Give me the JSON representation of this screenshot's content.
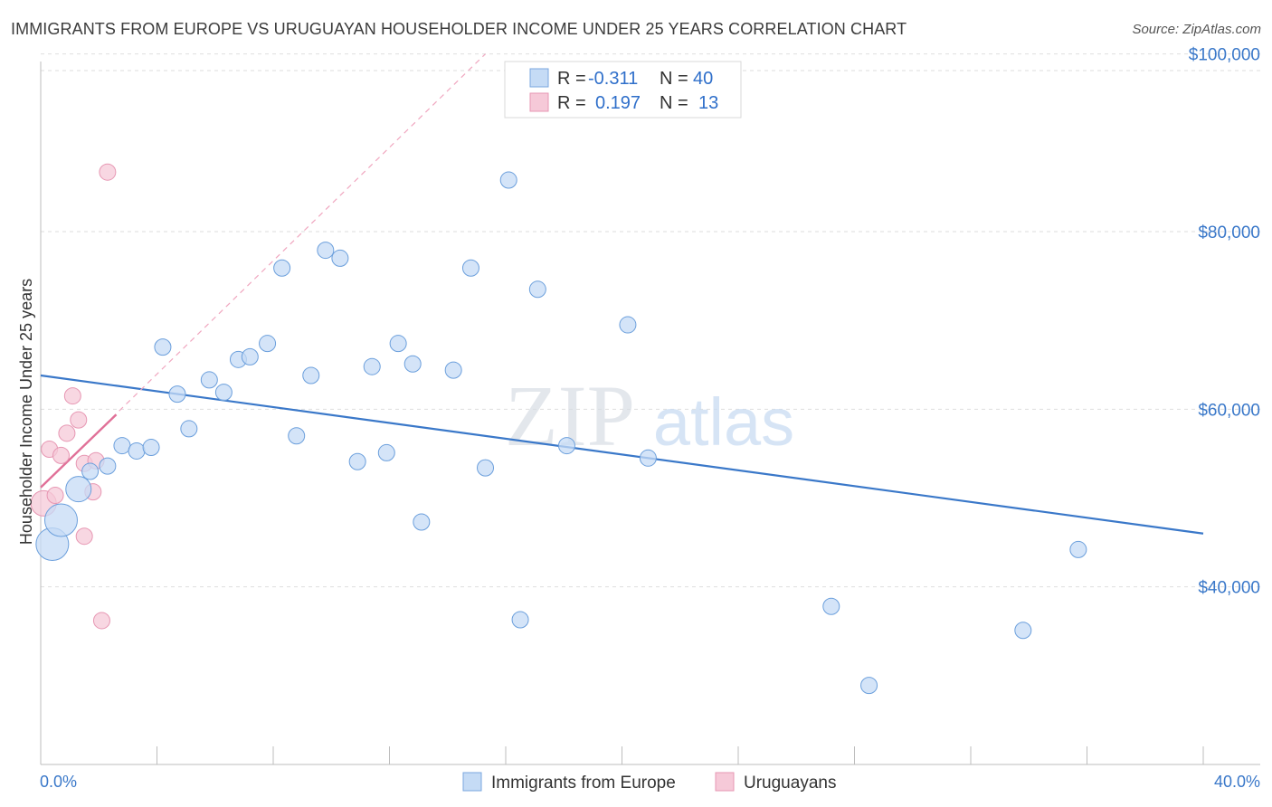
{
  "title": "IMMIGRANTS FROM EUROPE VS URUGUAYAN HOUSEHOLDER INCOME UNDER 25 YEARS CORRELATION CHART",
  "source": "Source: ZipAtlas.com",
  "watermark": {
    "zip": "ZIP",
    "atlas": "atlas"
  },
  "colors": {
    "blue": "#3a78c9",
    "blue_fill": "#c5dbf5",
    "pink": "#e07098",
    "pink_fill": "#f6c9d8"
  },
  "legend": {
    "series1": {
      "r_label": "R =",
      "r_value": "-0.311",
      "n_label": "N =",
      "n_value": "40"
    },
    "series2": {
      "r_label": "R =",
      "r_value": "0.197",
      "n_label": "N =",
      "n_value": "13"
    }
  },
  "chart_data": {
    "type": "scatter",
    "title": "IMMIGRANTS FROM EUROPE VS URUGUAYAN HOUSEHOLDER INCOME UNDER 25 YEARS CORRELATION CHART",
    "xlabel": "",
    "ylabel": "Householder Income Under 25 years",
    "xlim": [
      0,
      40
    ],
    "ylim": [
      20000,
      102000
    ],
    "x_tick_labels": [
      "0.0%",
      "40.0%"
    ],
    "y_ticks": [
      40000,
      60000,
      80000,
      100000
    ],
    "y_tick_labels": [
      "$40,000",
      "$60,000",
      "$80,000",
      "$100,000"
    ],
    "grid": true,
    "legend_position": "top-center",
    "series": [
      {
        "name": "Immigrants from Europe",
        "trend": {
          "x": [
            0,
            40
          ],
          "y": [
            63800,
            46000
          ]
        },
        "points": [
          {
            "x": 0.4,
            "y": 44800,
            "s": 3
          },
          {
            "x": 0.7,
            "y": 47500,
            "s": 3
          },
          {
            "x": 1.3,
            "y": 51000,
            "s": 2
          },
          {
            "x": 1.7,
            "y": 53000,
            "s": 1
          },
          {
            "x": 2.3,
            "y": 53600,
            "s": 1
          },
          {
            "x": 2.8,
            "y": 55900,
            "s": 1
          },
          {
            "x": 3.3,
            "y": 55300,
            "s": 1
          },
          {
            "x": 3.8,
            "y": 55700,
            "s": 1
          },
          {
            "x": 4.2,
            "y": 67000,
            "s": 1
          },
          {
            "x": 4.7,
            "y": 61700,
            "s": 1
          },
          {
            "x": 5.1,
            "y": 57800,
            "s": 1
          },
          {
            "x": 5.8,
            "y": 63300,
            "s": 1
          },
          {
            "x": 6.3,
            "y": 61900,
            "s": 1
          },
          {
            "x": 6.8,
            "y": 65600,
            "s": 1
          },
          {
            "x": 7.2,
            "y": 65900,
            "s": 1
          },
          {
            "x": 7.8,
            "y": 67400,
            "s": 1
          },
          {
            "x": 8.3,
            "y": 75900,
            "s": 1
          },
          {
            "x": 8.8,
            "y": 57000,
            "s": 1
          },
          {
            "x": 9.3,
            "y": 63800,
            "s": 1
          },
          {
            "x": 9.8,
            "y": 77900,
            "s": 1
          },
          {
            "x": 10.3,
            "y": 77000,
            "s": 1
          },
          {
            "x": 10.9,
            "y": 54100,
            "s": 1
          },
          {
            "x": 11.4,
            "y": 64800,
            "s": 1
          },
          {
            "x": 11.9,
            "y": 55100,
            "s": 1
          },
          {
            "x": 12.3,
            "y": 67400,
            "s": 1
          },
          {
            "x": 12.8,
            "y": 65100,
            "s": 1
          },
          {
            "x": 13.1,
            "y": 47300,
            "s": 1
          },
          {
            "x": 14.2,
            "y": 64400,
            "s": 1
          },
          {
            "x": 14.8,
            "y": 75900,
            "s": 1
          },
          {
            "x": 15.3,
            "y": 53400,
            "s": 1
          },
          {
            "x": 16.1,
            "y": 85800,
            "s": 1
          },
          {
            "x": 16.5,
            "y": 36300,
            "s": 1
          },
          {
            "x": 17.1,
            "y": 73500,
            "s": 1
          },
          {
            "x": 18.1,
            "y": 55900,
            "s": 1
          },
          {
            "x": 20.2,
            "y": 69500,
            "s": 1
          },
          {
            "x": 20.9,
            "y": 54500,
            "s": 1
          },
          {
            "x": 27.2,
            "y": 37800,
            "s": 1
          },
          {
            "x": 28.5,
            "y": 28900,
            "s": 1
          },
          {
            "x": 33.8,
            "y": 35100,
            "s": 1
          },
          {
            "x": 35.7,
            "y": 44200,
            "s": 1
          }
        ]
      },
      {
        "name": "Uruguayans",
        "trend": {
          "x": [
            0,
            2.6
          ],
          "y": [
            51200,
            59400
          ]
        },
        "trend_extended": {
          "x": [
            0,
            15.3
          ],
          "y": [
            51200,
            100000
          ]
        },
        "points": [
          {
            "x": 0.1,
            "y": 49400,
            "s": 2
          },
          {
            "x": 0.3,
            "y": 55500,
            "s": 1
          },
          {
            "x": 0.5,
            "y": 50300,
            "s": 1
          },
          {
            "x": 0.7,
            "y": 54800,
            "s": 1
          },
          {
            "x": 0.9,
            "y": 57300,
            "s": 1
          },
          {
            "x": 1.1,
            "y": 61500,
            "s": 1
          },
          {
            "x": 1.3,
            "y": 58800,
            "s": 1
          },
          {
            "x": 1.5,
            "y": 53900,
            "s": 1
          },
          {
            "x": 1.5,
            "y": 45700,
            "s": 1
          },
          {
            "x": 1.8,
            "y": 50700,
            "s": 1
          },
          {
            "x": 1.9,
            "y": 54200,
            "s": 1
          },
          {
            "x": 2.1,
            "y": 36200,
            "s": 1
          },
          {
            "x": 2.3,
            "y": 86700,
            "s": 1
          }
        ]
      }
    ]
  }
}
